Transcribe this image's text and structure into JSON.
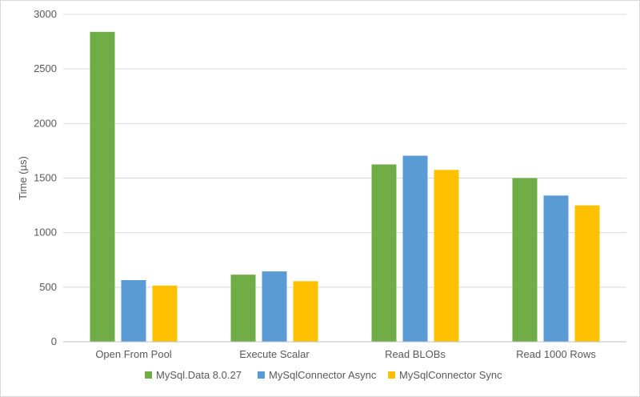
{
  "chart_data": {
    "type": "bar",
    "title": "",
    "xlabel": "",
    "ylabel": "Time (µs)",
    "categories": [
      "Open From Pool",
      "Execute Scalar",
      "Read BLOBs",
      "Read 1000 Rows"
    ],
    "series": [
      {
        "name": "MySql.Data 8.0.27",
        "color": "#70ad47",
        "values": [
          2840,
          615,
          1625,
          1500
        ]
      },
      {
        "name": "MySqlConnector Async",
        "color": "#5b9bd5",
        "values": [
          565,
          645,
          1705,
          1340
        ]
      },
      {
        "name": "MySqlConnector Sync",
        "color": "#ffc000",
        "values": [
          515,
          555,
          1575,
          1250
        ]
      }
    ],
    "ylim": [
      0,
      3000
    ],
    "yticks": [
      0,
      500,
      1000,
      1500,
      2000,
      2500,
      3000
    ],
    "grid": true,
    "legend": "bottom"
  }
}
